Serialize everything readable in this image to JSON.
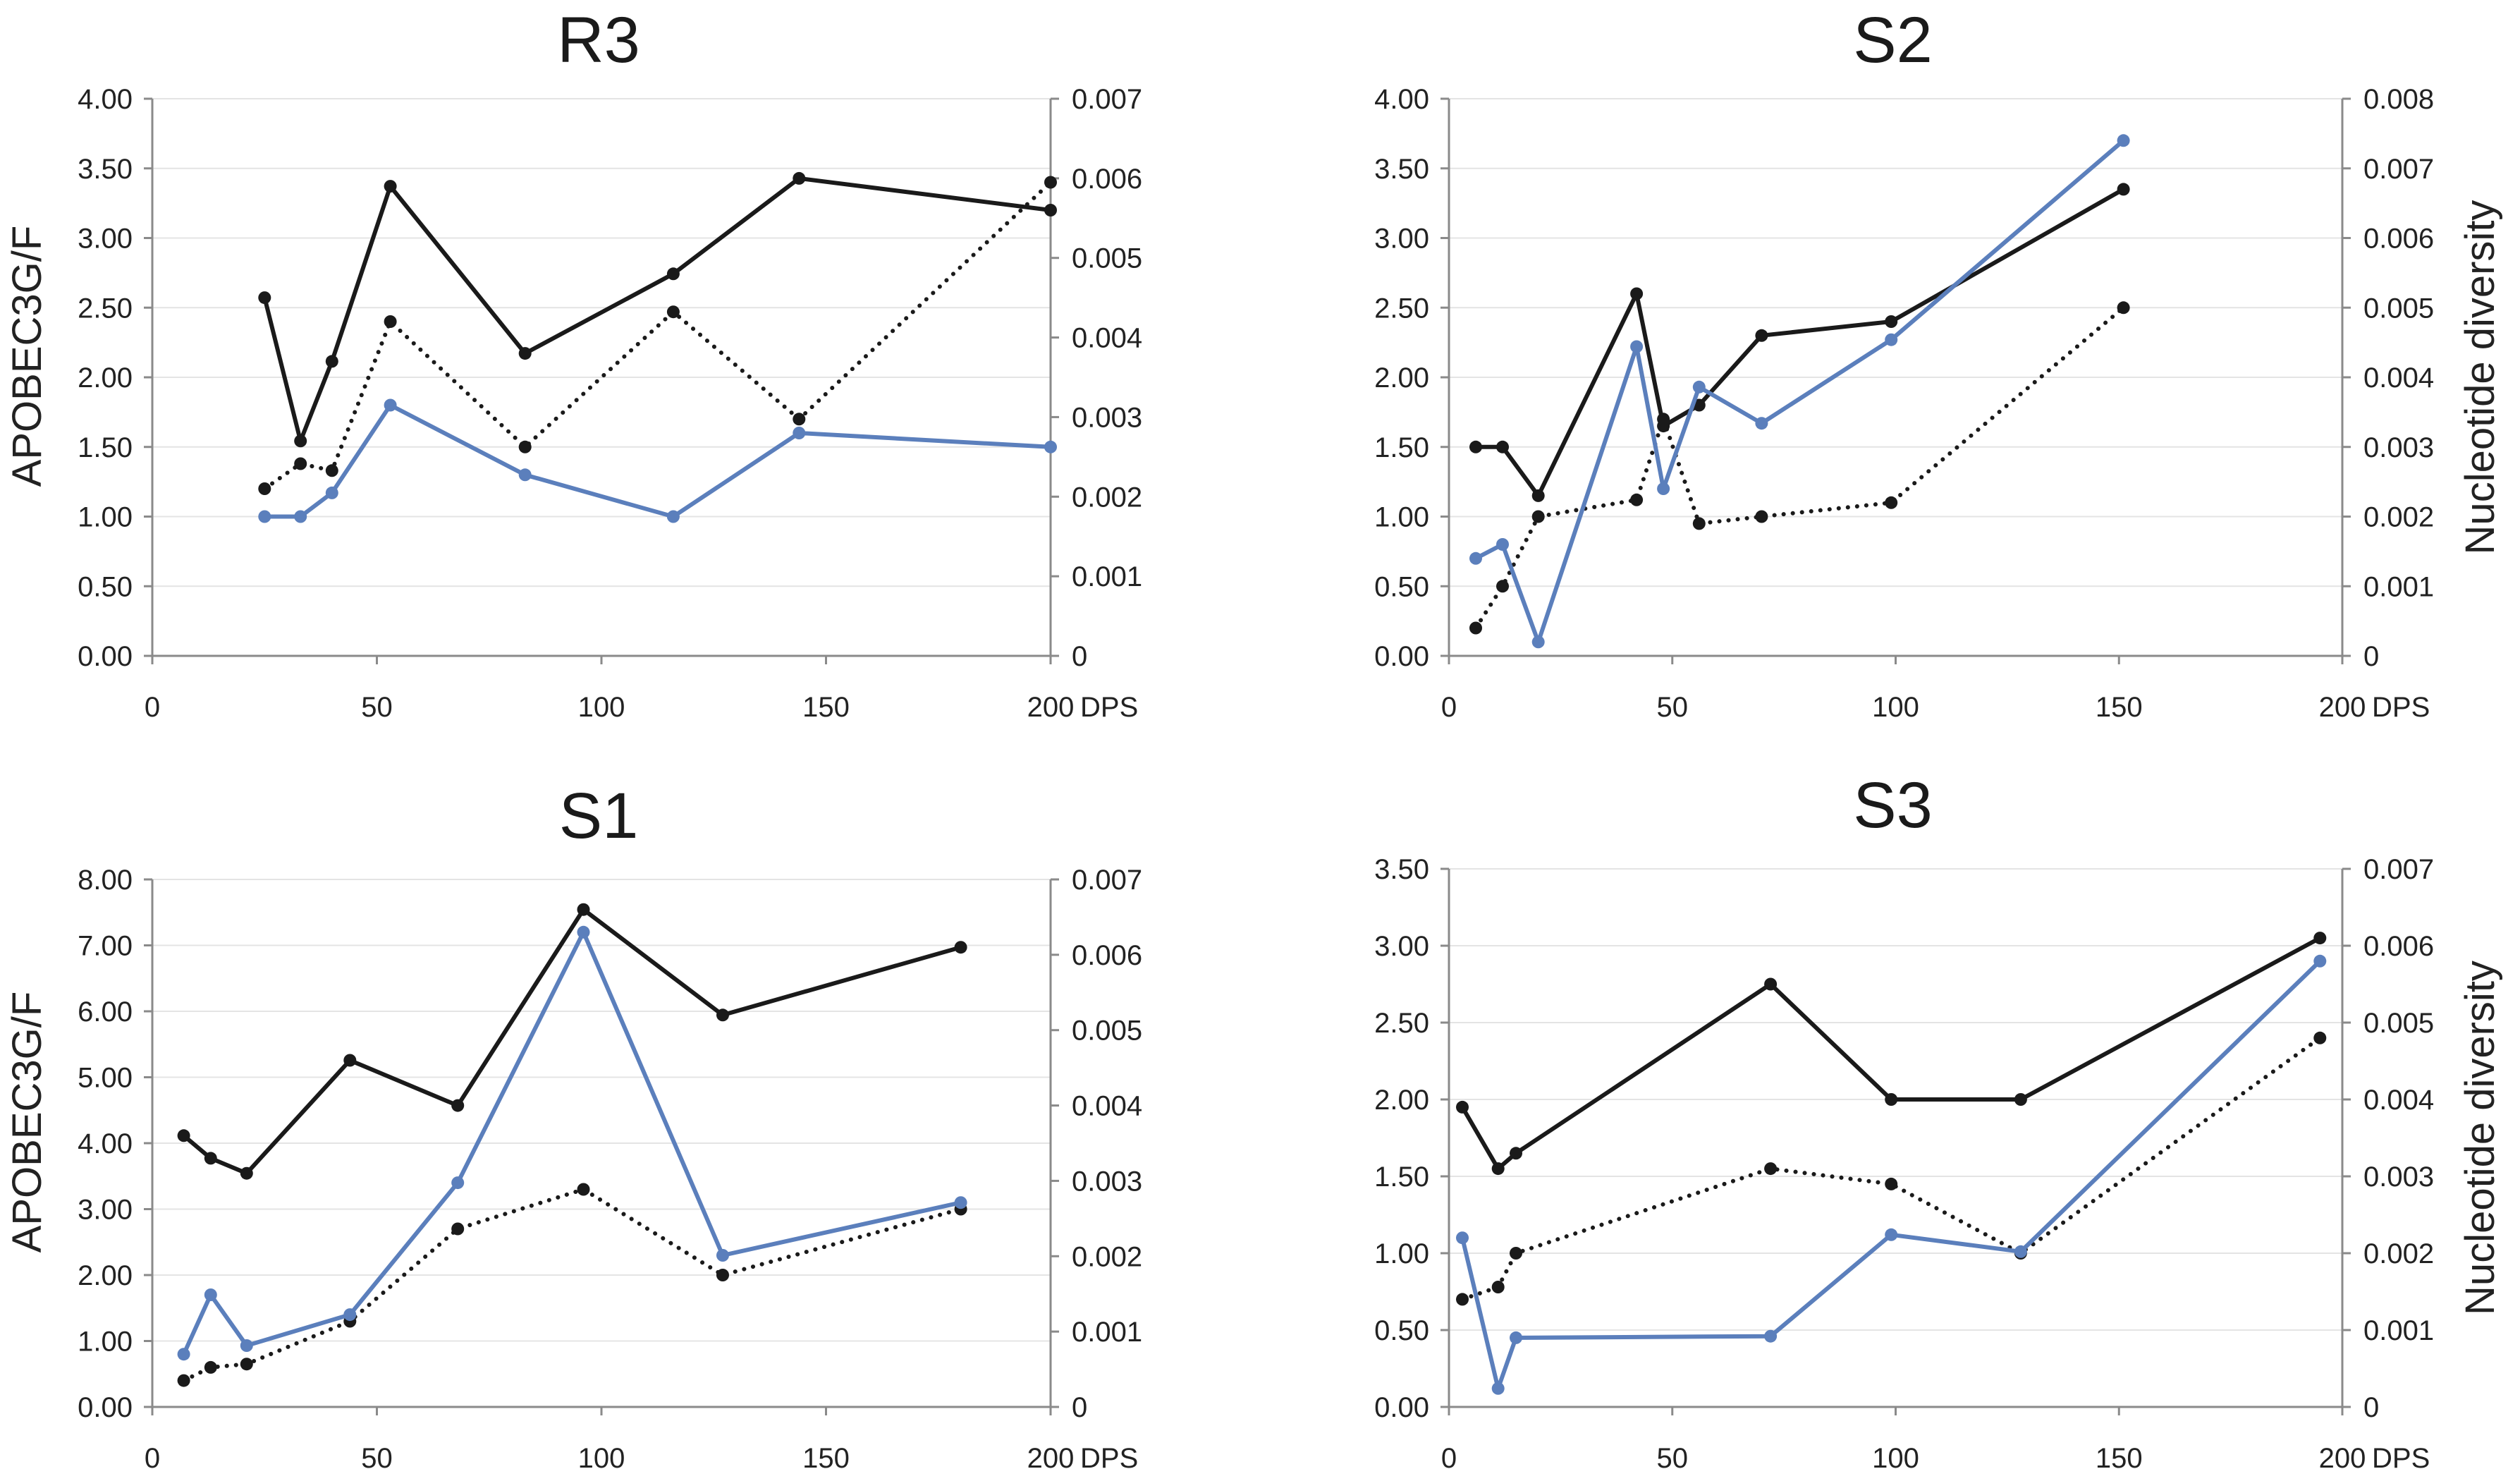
{
  "colors": {
    "solid": "#1a1a1a",
    "dotted": "#1a1a1a",
    "blue": "#5b7fbc",
    "grid": "#e4e4e4",
    "axis": "#8a8a8a"
  },
  "chart_data": [
    {
      "type": "line",
      "title": "R3",
      "ylabel": "APOBEC3G/F",
      "y2label": "",
      "xlabel": "DPS",
      "xlim": [
        0,
        200
      ],
      "xticks": [
        "0",
        "50",
        "100",
        "150",
        "200"
      ],
      "ylim": [
        0,
        4
      ],
      "yticks": [
        "0.00",
        "0.50",
        "1.00",
        "1.50",
        "2.00",
        "2.50",
        "3.00",
        "3.50",
        "4.00"
      ],
      "y2lim": [
        0,
        0.007
      ],
      "y2ticks": [
        "0",
        "0.001",
        "0.002",
        "0.003",
        "0.004",
        "0.005",
        "0.006",
        "0.007"
      ],
      "grid": true,
      "series": [
        {
          "style": "solid",
          "axis": "right",
          "x": [
            25,
            33,
            40,
            53,
            83,
            116,
            144,
            200
          ],
          "values": [
            0.0045,
            0.0027,
            0.0037,
            0.0059,
            0.0038,
            0.0048,
            0.006,
            0.0056
          ]
        },
        {
          "style": "dotted",
          "axis": "left",
          "x": [
            25,
            33,
            40,
            53,
            83,
            116,
            144,
            200
          ],
          "values": [
            1.2,
            1.38,
            1.33,
            2.4,
            1.5,
            2.47,
            1.7,
            3.4
          ]
        },
        {
          "style": "blue",
          "axis": "left",
          "x": [
            25,
            33,
            40,
            53,
            83,
            116,
            144,
            200
          ],
          "values": [
            1.0,
            1.0,
            1.17,
            1.8,
            1.3,
            1.0,
            1.6,
            1.5
          ]
        }
      ]
    },
    {
      "type": "line",
      "title": "S2",
      "ylabel": "",
      "y2label": "Nucleotide diversity",
      "xlabel": "DPS",
      "xlim": [
        0,
        200
      ],
      "xticks": [
        "0",
        "50",
        "100",
        "150",
        "200"
      ],
      "ylim": [
        0,
        4
      ],
      "yticks": [
        "0.00",
        "0.50",
        "1.00",
        "1.50",
        "2.00",
        "2.50",
        "3.00",
        "3.50",
        "4.00"
      ],
      "y2lim": [
        0,
        0.008
      ],
      "y2ticks": [
        "0",
        "0.001",
        "0.002",
        "0.003",
        "0.004",
        "0.005",
        "0.006",
        "0.007",
        "0.008"
      ],
      "grid": true,
      "series": [
        {
          "style": "solid",
          "axis": "right",
          "x": [
            6,
            12,
            20,
            42,
            48,
            56,
            70,
            99,
            151
          ],
          "values": [
            0.003,
            0.003,
            0.0023,
            0.0052,
            0.0033,
            0.0036,
            0.0046,
            0.0048,
            0.0067
          ]
        },
        {
          "style": "dotted",
          "axis": "left",
          "x": [
            6,
            12,
            20,
            42,
            48,
            56,
            70,
            99,
            151
          ],
          "values": [
            0.2,
            0.5,
            1.0,
            1.12,
            1.7,
            0.95,
            1.0,
            1.1,
            2.5
          ]
        },
        {
          "style": "blue",
          "axis": "left",
          "x": [
            6,
            12,
            20,
            42,
            48,
            56,
            70,
            99,
            151
          ],
          "values": [
            0.7,
            0.8,
            0.1,
            2.22,
            1.2,
            1.93,
            1.67,
            2.27,
            3.7
          ]
        }
      ]
    },
    {
      "type": "line",
      "title": "S1",
      "ylabel": "APOBEC3G/F",
      "y2label": "",
      "xlabel": "DPS",
      "xlim": [
        0,
        200
      ],
      "xticks": [
        "0",
        "50",
        "100",
        "150",
        "200"
      ],
      "ylim": [
        0,
        8
      ],
      "yticks": [
        "0.00",
        "1.00",
        "2.00",
        "3.00",
        "4.00",
        "5.00",
        "6.00",
        "7.00",
        "8.00"
      ],
      "y2lim": [
        0,
        0.007
      ],
      "y2ticks": [
        "0",
        "0.001",
        "0.002",
        "0.003",
        "0.004",
        "0.005",
        "0.006",
        "0.007"
      ],
      "grid": true,
      "series": [
        {
          "style": "solid",
          "axis": "right",
          "x": [
            7,
            13,
            21,
            44,
            68,
            96,
            127,
            180
          ],
          "values": [
            0.0036,
            0.0033,
            0.0031,
            0.0046,
            0.004,
            0.0066,
            0.0052,
            0.0061
          ]
        },
        {
          "style": "dotted",
          "axis": "left",
          "x": [
            7,
            13,
            21,
            44,
            68,
            96,
            127,
            180
          ],
          "values": [
            0.4,
            0.6,
            0.65,
            1.3,
            2.7,
            3.3,
            2.0,
            3.0
          ]
        },
        {
          "style": "blue",
          "axis": "left",
          "x": [
            7,
            13,
            21,
            44,
            68,
            96,
            127,
            180
          ],
          "values": [
            0.8,
            1.7,
            0.93,
            1.4,
            3.4,
            7.2,
            2.3,
            3.1
          ]
        }
      ]
    },
    {
      "type": "line",
      "title": "S3",
      "ylabel": "",
      "y2label": "Nucleotide diversity",
      "xlabel": "DPS",
      "xlim": [
        0,
        200
      ],
      "xticks": [
        "0",
        "50",
        "100",
        "150",
        "200"
      ],
      "ylim": [
        0,
        3.5
      ],
      "yticks": [
        "0.00",
        "0.50",
        "1.00",
        "1.50",
        "2.00",
        "2.50",
        "3.00",
        "3.50"
      ],
      "y2lim": [
        0,
        0.007
      ],
      "y2ticks": [
        "0",
        "0.001",
        "0.002",
        "0.003",
        "0.004",
        "0.005",
        "0.006",
        "0.007"
      ],
      "grid": true,
      "series": [
        {
          "style": "solid",
          "axis": "right",
          "x": [
            3,
            11,
            15,
            72,
            99,
            128,
            195
          ],
          "values": [
            0.0039,
            0.0031,
            0.0033,
            0.0055,
            0.004,
            0.004,
            0.0061
          ]
        },
        {
          "style": "dotted",
          "axis": "left",
          "x": [
            3,
            11,
            15,
            72,
            99,
            128,
            195
          ],
          "values": [
            0.7,
            0.78,
            1.0,
            1.55,
            1.45,
            1.0,
            2.4
          ]
        },
        {
          "style": "blue",
          "axis": "left",
          "x": [
            3,
            11,
            15,
            72,
            99,
            128,
            195
          ],
          "values": [
            1.1,
            0.12,
            0.45,
            0.46,
            1.12,
            1.01,
            2.9
          ]
        }
      ]
    }
  ]
}
